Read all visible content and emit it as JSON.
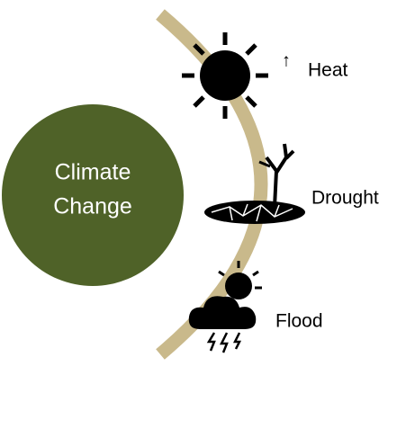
{
  "center": {
    "lines": [
      "Climate",
      "Change"
    ]
  },
  "items": [
    {
      "label": "Heat",
      "indicator": "↑"
    },
    {
      "label": "Drought"
    },
    {
      "label": "Flood"
    }
  ]
}
